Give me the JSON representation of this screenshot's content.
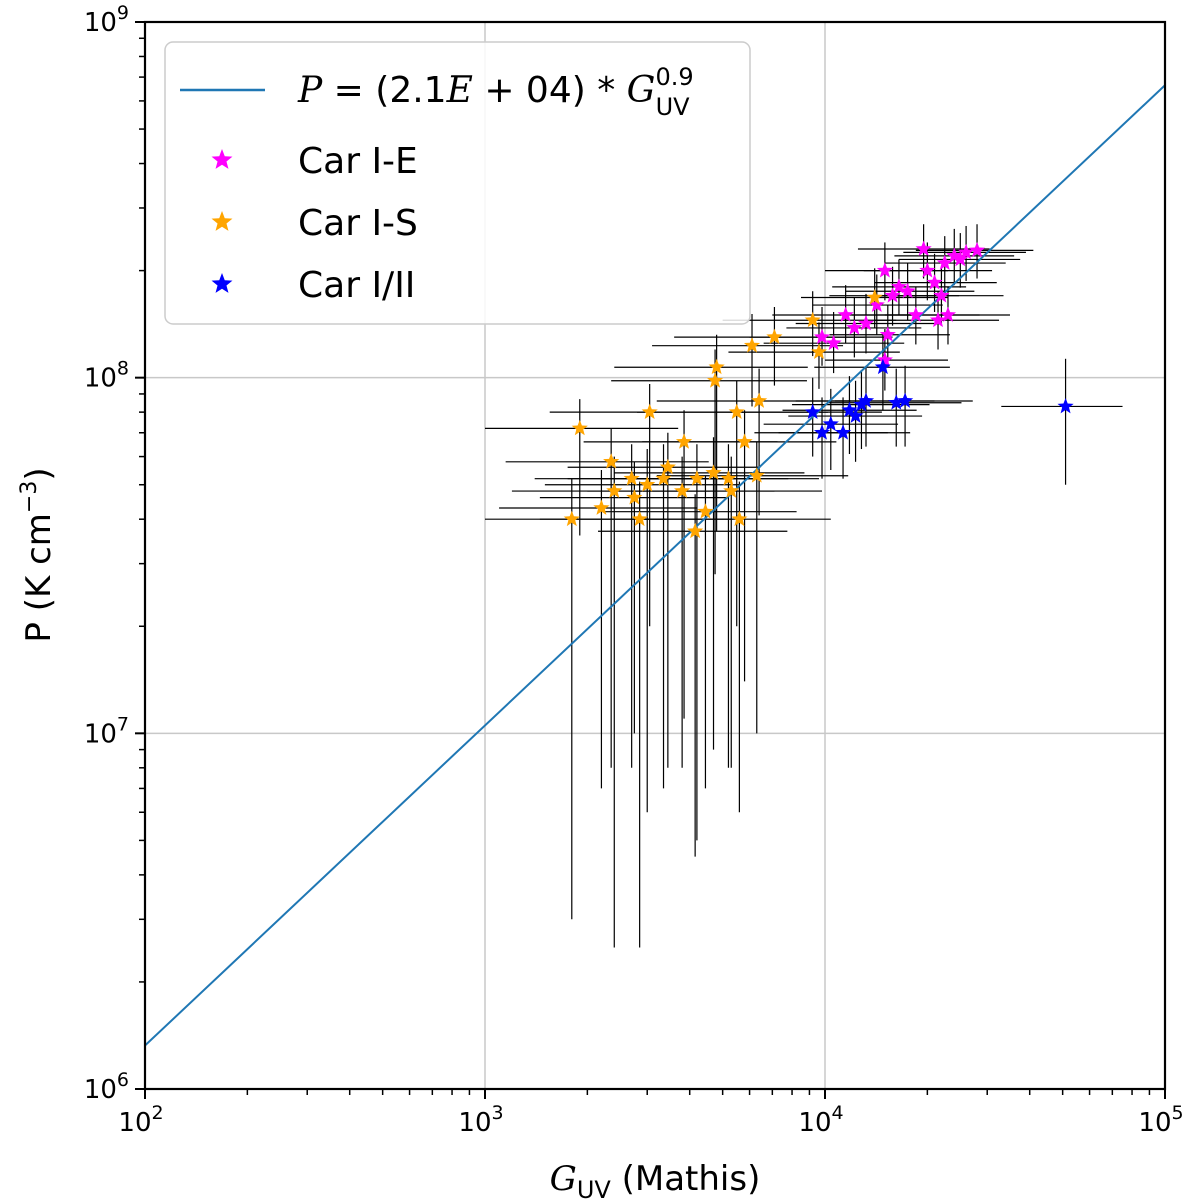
{
  "chart_data": {
    "type": "scatter",
    "xscale": "log",
    "yscale": "log",
    "xlim": [
      100,
      100000
    ],
    "ylim": [
      1000000,
      1000000000
    ],
    "grid": true,
    "legend_position": "top-left",
    "xlabel": {
      "symbol": "G",
      "sub": "UV",
      "rest": " (Mathis)"
    },
    "ylabel": {
      "text": "P (K cm",
      "sup": "−3",
      "close": ")"
    },
    "x_ticks": [
      {
        "value": 100,
        "base": "10",
        "exp": "2"
      },
      {
        "value": 1000,
        "base": "10",
        "exp": "3"
      },
      {
        "value": 10000,
        "base": "10",
        "exp": "4"
      },
      {
        "value": 100000,
        "base": "10",
        "exp": "5"
      }
    ],
    "y_ticks": [
      {
        "value": 1000000,
        "base": "10",
        "exp": "6"
      },
      {
        "value": 10000000,
        "base": "10",
        "exp": "7"
      },
      {
        "value": 100000000,
        "base": "10",
        "exp": "8"
      },
      {
        "value": 1000000000,
        "base": "10",
        "exp": "9"
      }
    ],
    "fit": {
      "coefficient": 21000,
      "exponent": 0.9,
      "color": "#1f77b4",
      "label": {
        "lhs": "P",
        "eq": " = (2.1",
        "e": "E",
        "plus": " + 04) * ",
        "g": "G",
        "sup": "0.9",
        "sub": "UV"
      }
    },
    "series": [
      {
        "name": "Car I-E",
        "color": "#ff00ff",
        "points": [
          {
            "x": 9800,
            "y": 130000000,
            "xerr": [
              3800,
              6000
            ],
            "yerr": [
              22000000,
              28000000
            ]
          },
          {
            "x": 10600,
            "y": 125000000,
            "xerr": [
              4000,
              6500
            ],
            "yerr": [
              22000000,
              28000000
            ]
          },
          {
            "x": 11500,
            "y": 150000000,
            "xerr": [
              4500,
              7000
            ],
            "yerr": [
              25000000,
              32000000
            ]
          },
          {
            "x": 12200,
            "y": 138000000,
            "xerr": [
              4500,
              7000
            ],
            "yerr": [
              24000000,
              30000000
            ]
          },
          {
            "x": 13200,
            "y": 142000000,
            "xerr": [
              5000,
              8000
            ],
            "yerr": [
              25000000,
              30000000
            ]
          },
          {
            "x": 14200,
            "y": 160000000,
            "xerr": [
              5000,
              8000
            ],
            "yerr": [
              28000000,
              35000000
            ]
          },
          {
            "x": 15000,
            "y": 200000000,
            "xerr": [
              5000,
              8000
            ],
            "yerr": [
              35000000,
              40000000
            ]
          },
          {
            "x": 15000,
            "y": 112000000,
            "xerr": [
              5000,
              8000
            ],
            "yerr": [
              20000000,
              25000000
            ]
          },
          {
            "x": 15300,
            "y": 132000000,
            "xerr": [
              5000,
              8000
            ],
            "yerr": [
              24000000,
              28000000
            ]
          },
          {
            "x": 15800,
            "y": 170000000,
            "xerr": [
              5500,
              9000
            ],
            "yerr": [
              30000000,
              35000000
            ]
          },
          {
            "x": 16500,
            "y": 180000000,
            "xerr": [
              6000,
              9500
            ],
            "yerr": [
              30000000,
              35000000
            ]
          },
          {
            "x": 17500,
            "y": 175000000,
            "xerr": [
              6000,
              10000
            ],
            "yerr": [
              30000000,
              35000000
            ]
          },
          {
            "x": 18500,
            "y": 150000000,
            "xerr": [
              6500,
              10000
            ],
            "yerr": [
              26000000,
              30000000
            ]
          },
          {
            "x": 19500,
            "y": 230000000,
            "xerr": [
              7000,
              11000
            ],
            "yerr": [
              40000000,
              40000000
            ]
          },
          {
            "x": 20000,
            "y": 200000000,
            "xerr": [
              7000,
              11000
            ],
            "yerr": [
              35000000,
              40000000
            ]
          },
          {
            "x": 21000,
            "y": 185000000,
            "xerr": [
              7000,
              11000
            ],
            "yerr": [
              32000000,
              38000000
            ]
          },
          {
            "x": 21500,
            "y": 145000000,
            "xerr": [
              7500,
              11000
            ],
            "yerr": [
              25000000,
              30000000
            ]
          },
          {
            "x": 22000,
            "y": 170000000,
            "xerr": [
              7500,
              11500
            ],
            "yerr": [
              30000000,
              35000000
            ]
          },
          {
            "x": 22500,
            "y": 210000000,
            "xerr": [
              7500,
              11500
            ],
            "yerr": [
              36000000,
              40000000
            ]
          },
          {
            "x": 23000,
            "y": 150000000,
            "xerr": [
              8000,
              12000
            ],
            "yerr": [
              26000000,
              30000000
            ]
          },
          {
            "x": 24000,
            "y": 220000000,
            "xerr": [
              8000,
              12000
            ],
            "yerr": [
              38000000,
              42000000
            ]
          },
          {
            "x": 25000,
            "y": 215000000,
            "xerr": [
              8500,
              12500
            ],
            "yerr": [
              36000000,
              40000000
            ]
          },
          {
            "x": 26000,
            "y": 225000000,
            "xerr": [
              9000,
              13000
            ],
            "yerr": [
              38000000,
              42000000
            ]
          },
          {
            "x": 28000,
            "y": 228000000,
            "xerr": [
              9500,
              13000
            ],
            "yerr": [
              38000000,
              42000000
            ]
          }
        ]
      },
      {
        "name": "Car I-S",
        "color": "#ffa500",
        "points": [
          {
            "x": 1800,
            "y": 40000000,
            "xerr": [
              800,
              1600
            ],
            "yerr": [
              37000000,
              12000000
            ]
          },
          {
            "x": 1900,
            "y": 72000000,
            "xerr": [
              900,
              1800
            ],
            "yerr": [
              36000000,
              15000000
            ]
          },
          {
            "x": 2200,
            "y": 43000000,
            "xerr": [
              1100,
              2000
            ],
            "yerr": [
              36000000,
              12000000
            ]
          },
          {
            "x": 2350,
            "y": 58000000,
            "xerr": [
              1200,
              2200
            ],
            "yerr": [
              50000000,
              14000000
            ]
          },
          {
            "x": 2400,
            "y": 48000000,
            "xerr": [
              1200,
              2200
            ],
            "yerr": [
              45500000,
              12000000
            ]
          },
          {
            "x": 2700,
            "y": 52000000,
            "xerr": [
              1300,
              2400
            ],
            "yerr": [
              44000000,
              13000000
            ]
          },
          {
            "x": 2750,
            "y": 46000000,
            "xerr": [
              1300,
              2400
            ],
            "yerr": [
              36000000,
              12000000
            ]
          },
          {
            "x": 2850,
            "y": 40000000,
            "xerr": [
              1400,
              2500
            ],
            "yerr": [
              37500000,
              11000000
            ]
          },
          {
            "x": 3000,
            "y": 50000000,
            "xerr": [
              1500,
              2600
            ],
            "yerr": [
              44000000,
              13000000
            ]
          },
          {
            "x": 3050,
            "y": 80000000,
            "xerr": [
              1500,
              2700
            ],
            "yerr": [
              60000000,
              16000000
            ]
          },
          {
            "x": 3350,
            "y": 52000000,
            "xerr": [
              1600,
              2900
            ],
            "yerr": [
              45000000,
              13000000
            ]
          },
          {
            "x": 3450,
            "y": 56000000,
            "xerr": [
              1700,
              3000
            ],
            "yerr": [
              48000000,
              14000000
            ]
          },
          {
            "x": 3800,
            "y": 48000000,
            "xerr": [
              1800,
              3300
            ],
            "yerr": [
              40000000,
              12000000
            ]
          },
          {
            "x": 3850,
            "y": 66000000,
            "xerr": [
              1900,
              3400
            ],
            "yerr": [
              55000000,
              15000000
            ]
          },
          {
            "x": 4150,
            "y": 37000000,
            "xerr": [
              2000,
              3600
            ],
            "yerr": [
              32500000,
              10000000
            ]
          },
          {
            "x": 4200,
            "y": 52000000,
            "xerr": [
              2000,
              3600
            ],
            "yerr": [
              47000000,
              13000000
            ]
          },
          {
            "x": 4450,
            "y": 42000000,
            "xerr": [
              2200,
              3800
            ],
            "yerr": [
              35000000,
              11000000
            ]
          },
          {
            "x": 4700,
            "y": 54000000,
            "xerr": [
              2300,
              4000
            ],
            "yerr": [
              45000000,
              14000000
            ]
          },
          {
            "x": 4750,
            "y": 98000000,
            "xerr": [
              2400,
              4100
            ],
            "yerr": [
              70000000,
              22000000
            ]
          },
          {
            "x": 4800,
            "y": 107000000,
            "xerr": [
              2400,
              4100
            ],
            "yerr": [
              70000000,
              25000000
            ]
          },
          {
            "x": 5200,
            "y": 52000000,
            "xerr": [
              2500,
              4400
            ],
            "yerr": [
              44000000,
              13000000
            ]
          },
          {
            "x": 5300,
            "y": 48000000,
            "xerr": [
              2600,
              4500
            ],
            "yerr": [
              40000000,
              12000000
            ]
          },
          {
            "x": 5500,
            "y": 80000000,
            "xerr": [
              2700,
              4700
            ],
            "yerr": [
              60000000,
              18000000
            ]
          },
          {
            "x": 5600,
            "y": 40000000,
            "xerr": [
              2800,
              4800
            ],
            "yerr": [
              34000000,
              11000000
            ]
          },
          {
            "x": 5800,
            "y": 66000000,
            "xerr": [
              2900,
              5000
            ],
            "yerr": [
              52000000,
              15000000
            ]
          },
          {
            "x": 6100,
            "y": 123000000,
            "xerr": [
              3000,
              5200
            ],
            "yerr": [
              40000000,
              28000000
            ]
          },
          {
            "x": 6300,
            "y": 53000000,
            "xerr": [
              3100,
              5400
            ],
            "yerr": [
              43000000,
              13000000
            ]
          },
          {
            "x": 6400,
            "y": 86000000,
            "xerr": [
              3200,
              5500
            ],
            "yerr": [
              45000000,
              20000000
            ]
          },
          {
            "x": 7100,
            "y": 130000000,
            "xerr": [
              3500,
              6000
            ],
            "yerr": [
              35000000,
              28000000
            ]
          },
          {
            "x": 9200,
            "y": 145000000,
            "xerr": [
              4200,
              7000
            ],
            "yerr": [
              30000000,
              30000000
            ]
          },
          {
            "x": 9600,
            "y": 118000000,
            "xerr": [
              4400,
              7000
            ],
            "yerr": [
              25000000,
              25000000
            ]
          },
          {
            "x": 14000,
            "y": 168000000,
            "xerr": [
              5500,
              9000
            ],
            "yerr": [
              30000000,
              35000000
            ]
          }
        ]
      },
      {
        "name": "Car I/II",
        "color": "#0000ff",
        "points": [
          {
            "x": 9200,
            "y": 80000000,
            "xerr": [
              3500,
              5500
            ],
            "yerr": [
              20000000,
              20000000
            ]
          },
          {
            "x": 9800,
            "y": 70000000,
            "xerr": [
              3600,
              5500
            ],
            "yerr": [
              18000000,
              18000000
            ]
          },
          {
            "x": 10400,
            "y": 74000000,
            "xerr": [
              3800,
              6000
            ],
            "yerr": [
              19000000,
              19000000
            ]
          },
          {
            "x": 11300,
            "y": 70000000,
            "xerr": [
              4000,
              6500
            ],
            "yerr": [
              18000000,
              18000000
            ]
          },
          {
            "x": 11800,
            "y": 81000000,
            "xerr": [
              4300,
              6800
            ],
            "yerr": [
              20000000,
              20000000
            ]
          },
          {
            "x": 12300,
            "y": 78000000,
            "xerr": [
              4500,
              7000
            ],
            "yerr": [
              20000000,
              20000000
            ]
          },
          {
            "x": 12800,
            "y": 84000000,
            "xerr": [
              4800,
              7500
            ],
            "yerr": [
              21000000,
              21000000
            ]
          },
          {
            "x": 13200,
            "y": 86000000,
            "xerr": [
              5000,
              7800
            ],
            "yerr": [
              22000000,
              22000000
            ]
          },
          {
            "x": 14800,
            "y": 107000000,
            "xerr": [
              5500,
              8500
            ],
            "yerr": [
              26000000,
              26000000
            ]
          },
          {
            "x": 16200,
            "y": 85000000,
            "xerr": [
              6000,
              9000
            ],
            "yerr": [
              21000000,
              21000000
            ]
          },
          {
            "x": 17200,
            "y": 86000000,
            "xerr": [
              6500,
              10000
            ],
            "yerr": [
              22000000,
              22000000
            ]
          },
          {
            "x": 51000,
            "y": 83000000,
            "xerr": [
              18000,
              24000
            ],
            "yerr": [
              33000000,
              30000000
            ]
          }
        ]
      }
    ]
  }
}
